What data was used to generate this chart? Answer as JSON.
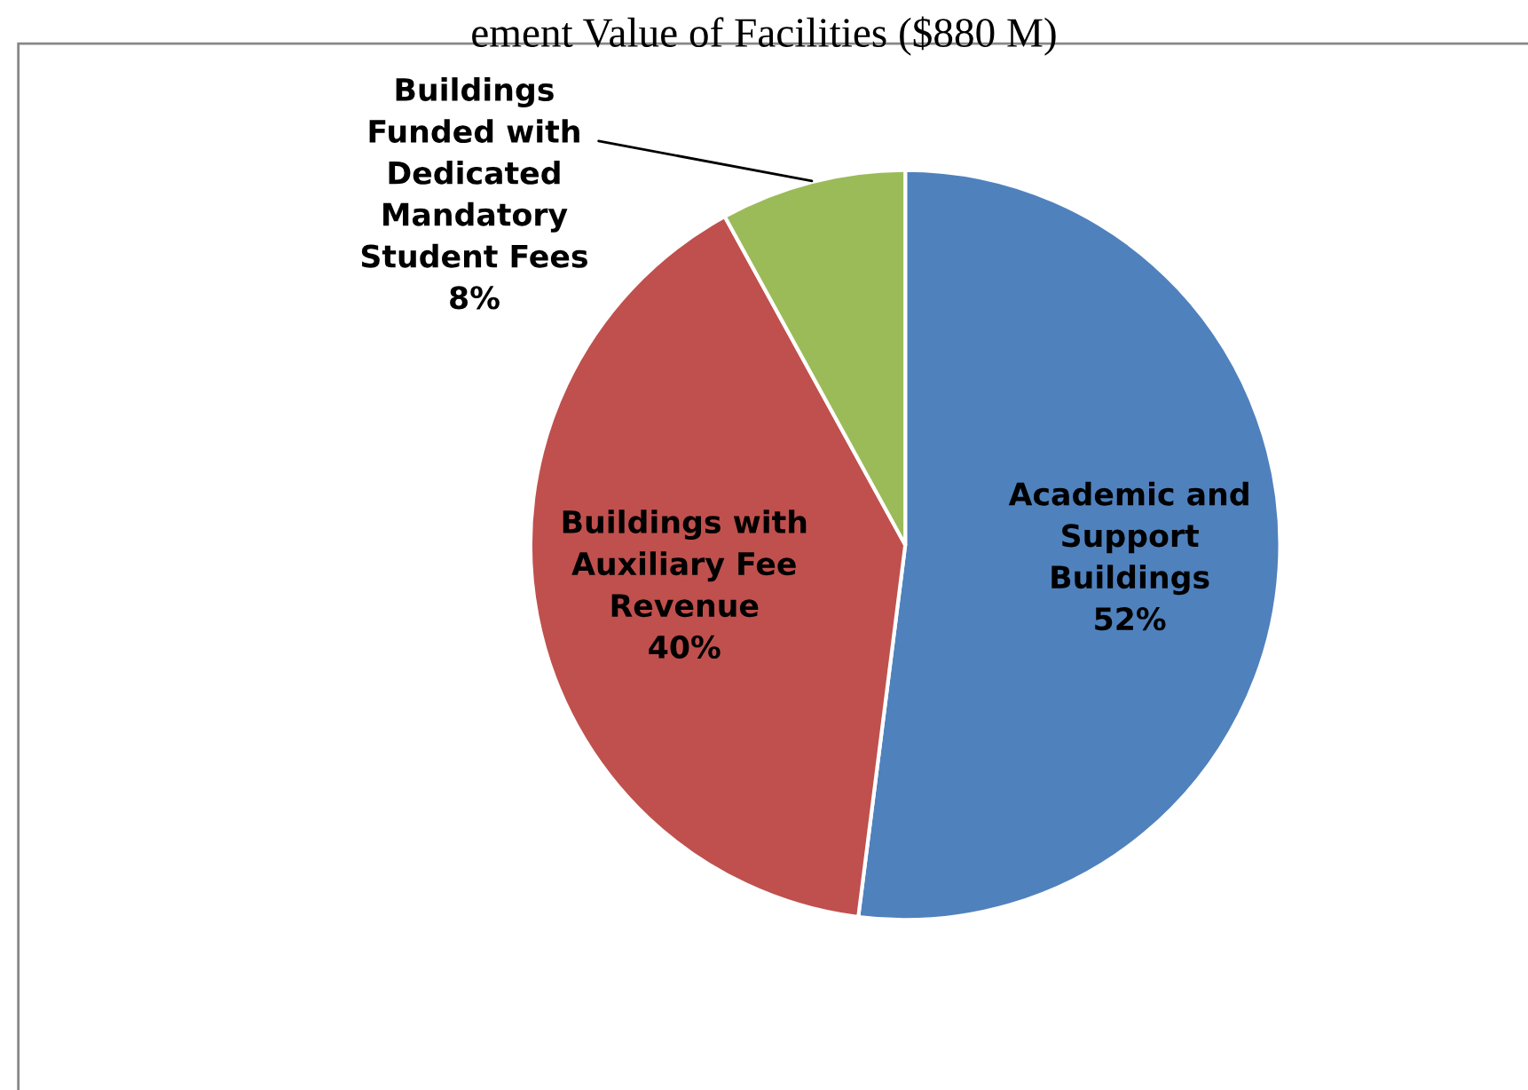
{
  "chart_data": {
    "type": "pie",
    "title": "ement Value of Facilities ($880 M)",
    "categories": [
      "Academic and\nSupport\nBuildings",
      "Buildings with\nAuxiliary Fee\nRevenue",
      "Buildings\nFunded with\nDedicated\nMandatory\nStudent Fees"
    ],
    "values": [
      52,
      40,
      8
    ],
    "colors": [
      "#4f81bd",
      "#c0504d",
      "#9bbb59"
    ],
    "value_labels": [
      "52%",
      "40%",
      "8%"
    ]
  }
}
